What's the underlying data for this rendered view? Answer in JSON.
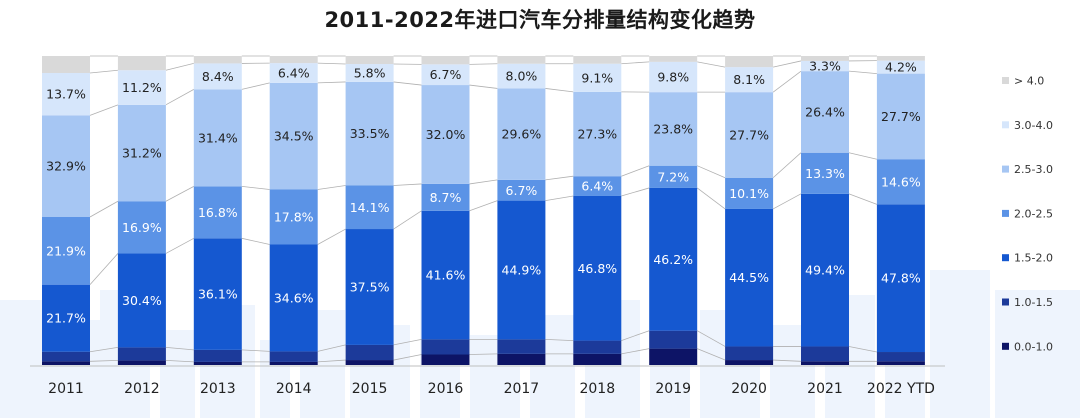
{
  "chart_data": {
    "type": "bar",
    "stacked": true,
    "normalized": true,
    "title": "2011-2022年进口汽车分排量结构变化趋势",
    "xlabel": "",
    "ylabel": "",
    "ylim": [
      0,
      100
    ],
    "grid": false,
    "legend_position": "right",
    "categories": [
      "2011",
      "2012",
      "2013",
      "2014",
      "2015",
      "2016",
      "2017",
      "2018",
      "2019",
      "2020",
      "2021",
      "2022 YTD"
    ],
    "series": [
      {
        "name": "0.0-1.0",
        "color": "#0d1466",
        "values": [
          1.2,
          1.5,
          1.0,
          1.0,
          1.6,
          3.4,
          3.6,
          3.6,
          5.3,
          1.6,
          1.2,
          1.2
        ]
      },
      {
        "name": "1.0-1.5",
        "color": "#1c3a9a",
        "values": [
          3.1,
          4.2,
          3.9,
          3.4,
          4.9,
          4.9,
          4.7,
          4.3,
          5.8,
          4.4,
          4.8,
          3.0
        ]
      },
      {
        "name": "1.5-2.0",
        "color": "#1558d0",
        "values": [
          21.7,
          30.4,
          36.1,
          34.6,
          37.5,
          41.6,
          44.9,
          46.8,
          46.2,
          44.5,
          49.4,
          47.8
        ]
      },
      {
        "name": "2.0-2.5",
        "color": "#5b93e6",
        "values": [
          21.9,
          16.9,
          16.8,
          17.8,
          14.1,
          8.7,
          6.7,
          6.4,
          7.2,
          10.1,
          13.3,
          14.6
        ]
      },
      {
        "name": "2.5-3.0",
        "color": "#a6c6f3",
        "values": [
          32.9,
          31.2,
          31.4,
          34.5,
          33.5,
          32.0,
          29.6,
          27.3,
          23.8,
          27.7,
          26.4,
          27.7
        ]
      },
      {
        "name": "3.0-4.0",
        "color": "#d6e6fb",
        "values": [
          13.7,
          11.2,
          8.4,
          6.4,
          5.8,
          6.7,
          8.0,
          9.1,
          9.8,
          8.1,
          3.3,
          4.2
        ]
      },
      {
        "name": "> 4.0",
        "color": "#d9d9d9",
        "values": [
          5.5,
          4.6,
          2.4,
          2.3,
          2.6,
          2.7,
          2.5,
          2.5,
          1.9,
          3.6,
          1.6,
          1.5
        ]
      }
    ],
    "labeled_series": [
      "1.5-2.0",
      "2.0-2.5",
      "2.5-3.0",
      "3.0-4.0"
    ],
    "data_labels": {
      "1.5-2.0": [
        "21.7%",
        "30.4%",
        "36.1%",
        "34.6%",
        "37.5%",
        "41.6%",
        "44.9%",
        "46.8%",
        "46.2%",
        "44.5%",
        "49.4%",
        "47.8%"
      ],
      "2.0-2.5": [
        "21.9%",
        "16.9%",
        "16.8%",
        "17.8%",
        "14.1%",
        "8.7%",
        "6.7%",
        "6.4%",
        "7.2%",
        "10.1%",
        "13.3%",
        "14.6%"
      ],
      "2.5-3.0": [
        "32.9%",
        "31.2%",
        "31.4%",
        "34.5%",
        "33.5%",
        "32.0%",
        "29.6%",
        "27.3%",
        "23.8%",
        "27.7%",
        "26.4%",
        "27.7%"
      ],
      "3.0-4.0": [
        "13.7%",
        "11.2%",
        "8.4%",
        "6.4%",
        "5.8%",
        "6.7%",
        "8.0%",
        "9.1%",
        "9.8%",
        "8.1%",
        "3.3%",
        "4.2%"
      ]
    },
    "legend_order": [
      "> 4.0",
      "3.0-4.0",
      "2.5-3.0",
      "2.0-2.5",
      "1.5-2.0",
      "1.0-1.5",
      "0.0-1.0"
    ]
  }
}
